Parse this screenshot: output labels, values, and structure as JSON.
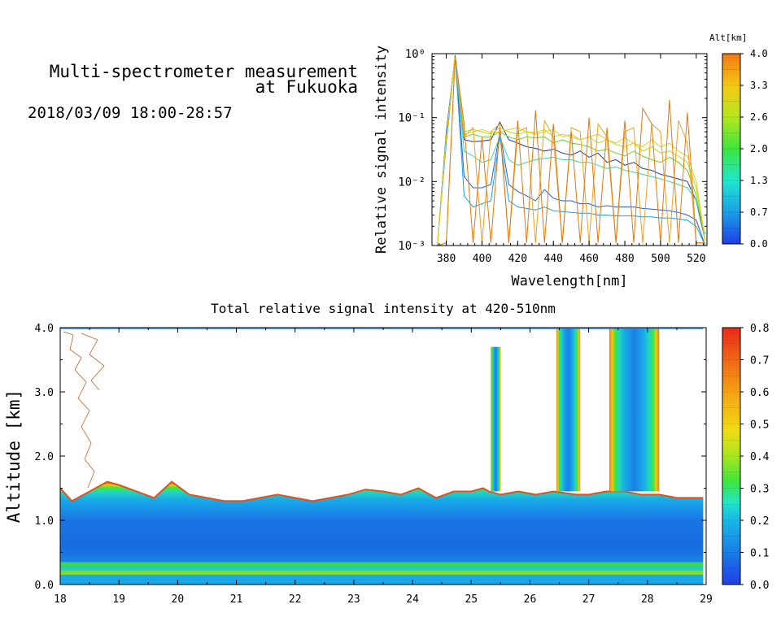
{
  "header": {
    "title_line1": "Multi-spectrometer measurement",
    "title_line2": "at Fukuoka",
    "date_range": "2018/03/09 18:00-28:57"
  },
  "chart_data": [
    {
      "type": "line",
      "title": "",
      "xlabel": "Wavelength[nm]",
      "ylabel": "Relative signal intensity",
      "xlim": [
        372,
        526
      ],
      "ylim": [
        0.001,
        1
      ],
      "y_scale": "log",
      "x_ticks": [
        380,
        400,
        420,
        440,
        460,
        480,
        500,
        520
      ],
      "y_ticks": [
        {
          "value": 1,
          "label": "10⁰"
        },
        {
          "value": 0.1,
          "label": "10⁻¹"
        },
        {
          "value": 0.01,
          "label": "10⁻²"
        },
        {
          "value": 0.001,
          "label": "10⁻³"
        }
      ],
      "colorbar": {
        "title": "Alt[km]",
        "ticks": [
          "4.0",
          "3.3",
          "2.6",
          "2.0",
          "1.3",
          "0.7",
          "0.0"
        ],
        "range": [
          0,
          4
        ]
      },
      "x": [
        375,
        380,
        385,
        390,
        395,
        400,
        405,
        410,
        415,
        420,
        425,
        430,
        435,
        440,
        445,
        450,
        455,
        460,
        465,
        470,
        475,
        480,
        485,
        490,
        495,
        500,
        505,
        510,
        515,
        520,
        525
      ],
      "series": [
        {
          "altitude": 0.1,
          "color": "#1f5fe0",
          "values": [
            0.001,
            0.05,
            0.95,
            0.012,
            0.008,
            0.008,
            0.009,
            0.06,
            0.009,
            0.007,
            0.006,
            0.005,
            0.0075,
            0.0055,
            0.005,
            0.005,
            0.0045,
            0.0045,
            0.004,
            0.0042,
            0.004,
            0.004,
            0.004,
            0.0038,
            0.0037,
            0.0036,
            0.0035,
            0.0033,
            0.003,
            0.0025,
            0.001
          ]
        },
        {
          "altitude": 0.3,
          "color": "#1aa0e6",
          "values": [
            0.001,
            0.04,
            0.9,
            0.006,
            0.004,
            0.0045,
            0.005,
            0.05,
            0.005,
            0.004,
            0.0038,
            0.0036,
            0.004,
            0.0035,
            0.0034,
            0.0033,
            0.0032,
            0.0032,
            0.003,
            0.003,
            0.0029,
            0.0029,
            0.0029,
            0.0028,
            0.0028,
            0.0027,
            0.0027,
            0.0026,
            0.0025,
            0.002,
            0.001
          ]
        },
        {
          "altitude": 0.5,
          "color": "#233a9a",
          "values": [
            0.001,
            0.06,
            0.92,
            0.045,
            0.042,
            0.043,
            0.045,
            0.085,
            0.045,
            0.04,
            0.035,
            0.033,
            0.03,
            0.032,
            0.028,
            0.026,
            0.03,
            0.024,
            0.028,
            0.02,
            0.022,
            0.018,
            0.02,
            0.016,
            0.015,
            0.013,
            0.012,
            0.011,
            0.01,
            0.005,
            0.0012
          ]
        },
        {
          "altitude": 1.3,
          "color": "#38d6b0",
          "values": [
            0.001,
            0.05,
            0.9,
            0.03,
            0.025,
            0.02,
            0.022,
            0.05,
            0.022,
            0.018,
            0.02,
            0.022,
            0.023,
            0.024,
            0.022,
            0.022,
            0.02,
            0.02,
            0.018,
            0.016,
            0.017,
            0.015,
            0.014,
            0.013,
            0.012,
            0.011,
            0.01,
            0.009,
            0.008,
            0.005,
            0.0015
          ]
        },
        {
          "altitude": 2.0,
          "color": "#5fd629",
          "values": [
            0.001,
            0.05,
            0.9,
            0.05,
            0.055,
            0.05,
            0.05,
            0.06,
            0.05,
            0.045,
            0.05,
            0.048,
            0.05,
            0.04,
            0.045,
            0.04,
            0.038,
            0.035,
            0.03,
            0.032,
            0.028,
            0.025,
            0.03,
            0.025,
            0.022,
            0.02,
            0.024,
            0.02,
            0.015,
            0.006,
            0.0012
          ]
        },
        {
          "altitude": 2.6,
          "color": "#b6dc1e",
          "values": [
            0.001,
            0.05,
            0.9,
            0.06,
            0.065,
            0.06,
            0.055,
            0.07,
            0.06,
            0.055,
            0.06,
            0.058,
            0.065,
            0.05,
            0.055,
            0.05,
            0.045,
            0.05,
            0.04,
            0.045,
            0.038,
            0.035,
            0.04,
            0.03,
            0.035,
            0.028,
            0.03,
            0.025,
            0.02,
            0.008,
            0.0012
          ]
        },
        {
          "altitude": 3.0,
          "color": "#f0cc18",
          "values": [
            0.001,
            0.05,
            0.9,
            0.055,
            0.06,
            0.065,
            0.058,
            0.06,
            0.065,
            0.07,
            0.06,
            0.055,
            0.06,
            0.065,
            0.05,
            0.055,
            0.045,
            0.05,
            0.055,
            0.045,
            0.04,
            0.048,
            0.04,
            0.035,
            0.045,
            0.035,
            0.04,
            0.03,
            0.025,
            0.01,
            0.0012
          ]
        },
        {
          "altitude": 3.6,
          "color": "#f0a020",
          "values": [
            0.001,
            0.0011,
            0.9,
            0.05,
            0.07,
            0.0011,
            0.06,
            0.08,
            0.0011,
            0.06,
            0.07,
            0.0011,
            0.09,
            0.05,
            0.0011,
            0.07,
            0.06,
            0.0011,
            0.08,
            0.05,
            0.0011,
            0.06,
            0.07,
            0.0011,
            0.08,
            0.06,
            0.0011,
            0.09,
            0.04,
            0.0011,
            0.0011
          ]
        },
        {
          "altitude": 4.0,
          "color": "#e07a10",
          "values": [
            0.001,
            0.0011,
            0.9,
            0.08,
            0.0011,
            0.05,
            0.0011,
            0.07,
            0.0011,
            0.09,
            0.0011,
            0.13,
            0.0011,
            0.08,
            0.0011,
            0.06,
            0.0011,
            0.1,
            0.0011,
            0.07,
            0.0011,
            0.09,
            0.0011,
            0.14,
            0.08,
            0.0011,
            0.19,
            0.0011,
            0.12,
            0.0011,
            0.0011
          ]
        }
      ]
    },
    {
      "type": "heatmap",
      "title": "Total relative signal intensity at 420-510nm",
      "xlabel": "",
      "ylabel": "Altitude [km]",
      "xlim": [
        18,
        29
      ],
      "ylim": [
        0,
        4
      ],
      "x_ticks": [
        "18",
        "19",
        "20",
        "21",
        "22",
        "23",
        "24",
        "25",
        "26",
        "27",
        "28",
        "29"
      ],
      "y_ticks": [
        "0.0",
        "1.0",
        "2.0",
        "3.0",
        "4.0"
      ],
      "colorbar": {
        "ticks": [
          "0.8",
          "0.7",
          "0.6",
          "0.5",
          "0.4",
          "0.3",
          "0.2",
          "0.1",
          "0.0"
        ],
        "range": [
          0,
          0.8
        ]
      },
      "data_end_time": 28.95,
      "layer_top_km": [
        [
          18.0,
          1.5
        ],
        [
          18.2,
          1.3
        ],
        [
          18.5,
          1.45
        ],
        [
          18.8,
          1.6
        ],
        [
          19.0,
          1.55
        ],
        [
          19.3,
          1.45
        ],
        [
          19.6,
          1.35
        ],
        [
          19.9,
          1.6
        ],
        [
          20.2,
          1.4
        ],
        [
          20.5,
          1.35
        ],
        [
          20.8,
          1.3
        ],
        [
          21.1,
          1.3
        ],
        [
          21.4,
          1.35
        ],
        [
          21.7,
          1.4
        ],
        [
          22.0,
          1.35
        ],
        [
          22.3,
          1.3
        ],
        [
          22.6,
          1.35
        ],
        [
          22.9,
          1.4
        ],
        [
          23.2,
          1.48
        ],
        [
          23.5,
          1.45
        ],
        [
          23.8,
          1.4
        ],
        [
          24.1,
          1.5
        ],
        [
          24.4,
          1.35
        ],
        [
          24.7,
          1.45
        ],
        [
          25.0,
          1.45
        ],
        [
          25.2,
          1.5
        ],
        [
          25.3,
          1.45
        ],
        [
          25.5,
          1.4
        ],
        [
          25.8,
          1.45
        ],
        [
          26.1,
          1.4
        ],
        [
          26.4,
          1.45
        ],
        [
          26.8,
          1.4
        ],
        [
          27.0,
          1.4
        ],
        [
          27.3,
          1.45
        ],
        [
          27.6,
          1.45
        ],
        [
          27.9,
          1.4
        ],
        [
          28.2,
          1.4
        ],
        [
          28.5,
          1.35
        ],
        [
          28.95,
          1.35
        ]
      ],
      "cloud_columns": [
        {
          "x0": 25.33,
          "x1": 25.5,
          "top_km": 3.7
        },
        {
          "x0": 26.45,
          "x1": 26.85,
          "top_km": 4.0
        },
        {
          "x0": 27.35,
          "x1": 28.2,
          "top_km": 4.0
        }
      ],
      "near_ground_layer_km": [
        0.15,
        0.35
      ]
    }
  ]
}
